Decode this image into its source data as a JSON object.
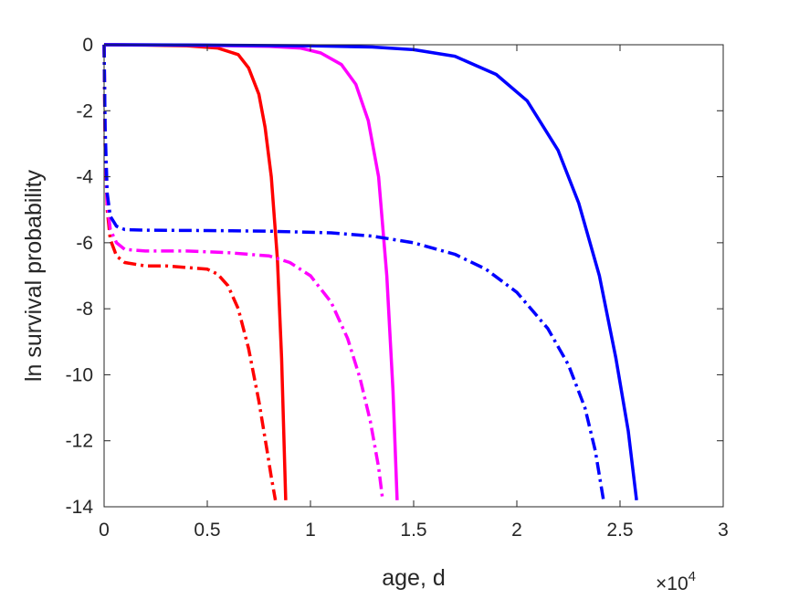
{
  "chart_data": {
    "type": "line",
    "title": "",
    "xlabel": "age, d",
    "ylabel": "ln survival probability",
    "x_multiplier_label": {
      "base": "×10",
      "exponent": "4"
    },
    "xlim": [
      0,
      30000
    ],
    "ylim": [
      -14,
      0
    ],
    "xticks": [
      0,
      5000,
      10000,
      15000,
      20000,
      25000,
      30000
    ],
    "xtick_labels": [
      "0",
      "0.5",
      "1",
      "1.5",
      "2",
      "2.5",
      "3"
    ],
    "yticks": [
      0,
      -2,
      -4,
      -6,
      -8,
      -10,
      -12,
      -14
    ],
    "ytick_labels": [
      "0",
      "-2",
      "-4",
      "-6",
      "-8",
      "-10",
      "-12",
      "-14"
    ],
    "grid": false,
    "legend": "none",
    "series": [
      {
        "color": "#ff0000",
        "style": "solid",
        "x": [
          0,
          2000,
          4000,
          5500,
          6500,
          7000,
          7500,
          7800,
          8100,
          8400,
          8600,
          8800
        ],
        "y": [
          0,
          -0.01,
          -0.03,
          -0.1,
          -0.3,
          -0.7,
          -1.5,
          -2.5,
          -4.0,
          -6.5,
          -9.5,
          -13.8
        ]
      },
      {
        "color": "#ff00ff",
        "style": "solid",
        "x": [
          0,
          4000,
          8000,
          9500,
          10500,
          11500,
          12200,
          12800,
          13300,
          13700,
          14000,
          14200
        ],
        "y": [
          0,
          -0.01,
          -0.05,
          -0.1,
          -0.25,
          -0.6,
          -1.2,
          -2.3,
          -4.0,
          -7.0,
          -10.5,
          -13.8
        ]
      },
      {
        "color": "#0000ff",
        "style": "solid",
        "x": [
          0,
          5000,
          10000,
          13000,
          15000,
          17000,
          19000,
          20500,
          22000,
          23000,
          24000,
          24800,
          25400,
          25800
        ],
        "y": [
          0,
          -0.01,
          -0.03,
          -0.07,
          -0.15,
          -0.35,
          -0.9,
          -1.7,
          -3.2,
          -4.8,
          -7.0,
          -9.5,
          -11.7,
          -13.8
        ]
      },
      {
        "color": "#ff0000",
        "style": "dashdot",
        "x": [
          0,
          50,
          150,
          300,
          600,
          1000,
          2000,
          3000,
          4000,
          5000,
          5500,
          6000,
          6500,
          7000,
          7500,
          7900,
          8100,
          8300
        ],
        "y": [
          0,
          -3.0,
          -5.0,
          -5.9,
          -6.4,
          -6.6,
          -6.7,
          -6.7,
          -6.75,
          -6.8,
          -6.95,
          -7.3,
          -8.0,
          -9.2,
          -10.8,
          -12.3,
          -13.1,
          -13.8
        ]
      },
      {
        "color": "#ff00ff",
        "style": "dashdot",
        "x": [
          0,
          50,
          150,
          300,
          600,
          1000,
          2000,
          4000,
          6000,
          8000,
          9000,
          10000,
          11000,
          11800,
          12400,
          12900,
          13300,
          13500
        ],
        "y": [
          0,
          -3.0,
          -4.8,
          -5.6,
          -6.0,
          -6.2,
          -6.25,
          -6.25,
          -6.3,
          -6.4,
          -6.6,
          -7.0,
          -7.8,
          -8.9,
          -10.1,
          -11.4,
          -12.8,
          -13.8
        ]
      },
      {
        "color": "#0000ff",
        "style": "dashdot",
        "x": [
          0,
          50,
          150,
          300,
          600,
          1000,
          2000,
          5000,
          8000,
          11000,
          13000,
          15000,
          17000,
          18500,
          20000,
          21500,
          22500,
          23300,
          23800,
          24200
        ],
        "y": [
          0,
          -2.5,
          -4.5,
          -5.2,
          -5.5,
          -5.6,
          -5.62,
          -5.63,
          -5.65,
          -5.7,
          -5.8,
          -6.0,
          -6.35,
          -6.8,
          -7.5,
          -8.6,
          -9.7,
          -11.0,
          -12.3,
          -13.8
        ]
      }
    ]
  }
}
